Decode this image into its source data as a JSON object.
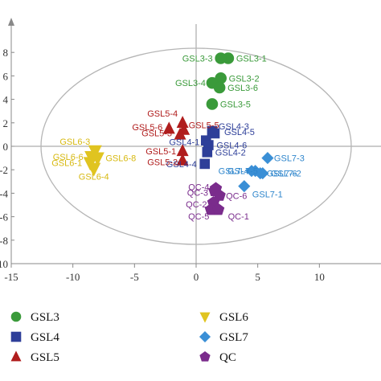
{
  "chart_data": {
    "type": "scatter",
    "title": "",
    "xlabel": "",
    "ylabel": "",
    "xlim": [
      -15,
      15
    ],
    "ylim": [
      -10,
      10
    ],
    "x_ticks": [
      "-15",
      "-10",
      "-5",
      "0",
      "5",
      "10"
    ],
    "y_ticks": [
      "8",
      "6",
      "4",
      "2",
      "0",
      "-2",
      "-4",
      "-6",
      "-8",
      "-10"
    ],
    "grid": false,
    "legend_position": "bottom",
    "series": [
      {
        "name": "GSL3",
        "marker": "circle",
        "color": "#3a9a3a",
        "points": [
          {
            "label": "GSL3-1",
            "x": 2.6,
            "y": 7.5
          },
          {
            "label": "GSL3-3",
            "x": 2.0,
            "y": 7.5
          },
          {
            "label": "GSL3-2",
            "x": 2.0,
            "y": 5.8
          },
          {
            "label": "GSL3-4",
            "x": 1.3,
            "y": 5.4
          },
          {
            "label": "GSL3-6",
            "x": 1.9,
            "y": 5.0
          },
          {
            "label": "GSL3-5",
            "x": 1.3,
            "y": 3.6
          }
        ]
      },
      {
        "name": "GSL4",
        "marker": "square",
        "color": "#2e3f99",
        "points": [
          {
            "label": "GSL4-3",
            "x": 1.3,
            "y": 1.3
          },
          {
            "label": "GSL4-5",
            "x": 1.5,
            "y": 1.1
          },
          {
            "label": "GSL4-1",
            "x": 0.8,
            "y": 0.5
          },
          {
            "label": "GSL4-6",
            "x": 1.0,
            "y": 0.1
          },
          {
            "label": "GSL4-2",
            "x": 0.9,
            "y": -0.5
          },
          {
            "label": "GSL4-4",
            "x": 0.7,
            "y": -1.5
          }
        ]
      },
      {
        "name": "GSL5",
        "marker": "triangle",
        "color": "#b01d1d",
        "points": [
          {
            "label": "GSL5-4",
            "x": -1.1,
            "y": 2.0
          },
          {
            "label": "GSL5-5",
            "x": -1.0,
            "y": 1.4
          },
          {
            "label": "GSL5-6",
            "x": -2.2,
            "y": 1.5
          },
          {
            "label": "GSL5-3",
            "x": -1.3,
            "y": 1.0
          },
          {
            "label": "GSL5-1",
            "x": -1.1,
            "y": -0.4
          },
          {
            "label": "GSL5-2",
            "x": -1.1,
            "y": -1.2
          }
        ]
      },
      {
        "name": "GSL6",
        "marker": "triangle-down",
        "color": "#e0c420",
        "points": [
          {
            "label": "GSL6-3",
            "x": -8.2,
            "y": -0.4
          },
          {
            "label": "GSL6-6",
            "x": -8.5,
            "y": -0.9
          },
          {
            "label": "GSL6-8",
            "x": -8.0,
            "y": -1.0
          },
          {
            "label": "GSL6-1",
            "x": -8.6,
            "y": -1.4
          },
          {
            "label": "GSL6-4",
            "x": -8.3,
            "y": -1.9
          }
        ]
      },
      {
        "name": "GSL7",
        "marker": "diamond",
        "color": "#3a8fd6",
        "points": [
          {
            "label": "GSL7-3",
            "x": 5.8,
            "y": -1.0
          },
          {
            "label": "GSL7-5",
            "x": 4.5,
            "y": -2.1
          },
          {
            "label": "GSL7-4",
            "x": 4.8,
            "y": -2.1
          },
          {
            "label": "GSL7-6",
            "x": 5.2,
            "y": -2.3
          },
          {
            "label": "GSL7-2",
            "x": 5.4,
            "y": -2.3
          },
          {
            "label": "GSL7-1",
            "x": 3.9,
            "y": -3.4
          }
        ]
      },
      {
        "name": "QC",
        "marker": "pentagon",
        "color": "#7a2c8c",
        "points": [
          {
            "label": "QC-4",
            "x": 1.6,
            "y": -3.6
          },
          {
            "label": "QC-3",
            "x": 1.5,
            "y": -3.8
          },
          {
            "label": "QC-6",
            "x": 1.9,
            "y": -4.2
          },
          {
            "label": "QC-2",
            "x": 1.4,
            "y": -4.8
          },
          {
            "label": "QC-5",
            "x": 1.2,
            "y": -5.4
          },
          {
            "label": "QC-1",
            "x": 1.8,
            "y": -5.4
          }
        ]
      }
    ]
  }
}
